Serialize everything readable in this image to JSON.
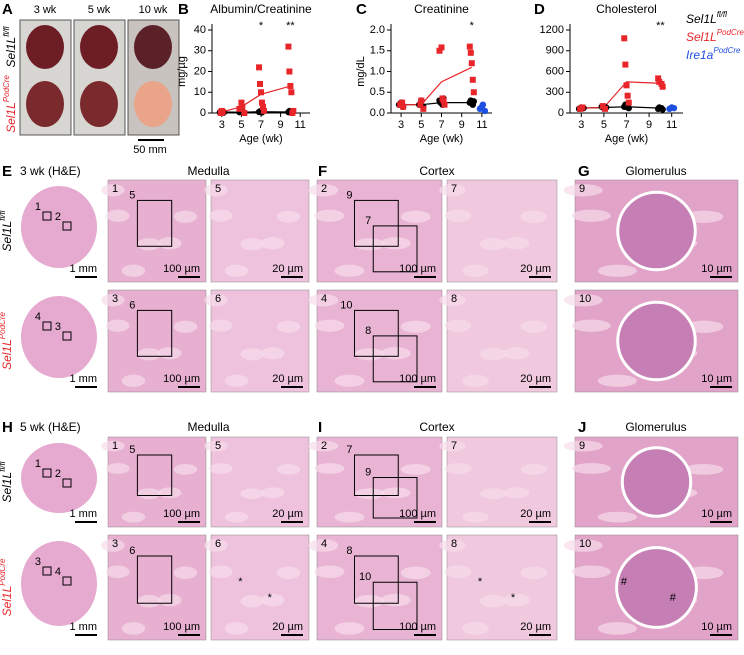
{
  "panel_letters": [
    "A",
    "B",
    "C",
    "D",
    "E",
    "F",
    "G",
    "H",
    "I",
    "J"
  ],
  "genotypes": [
    {
      "base": "Sel1L",
      "sup": "fl/fl",
      "color": "#000000"
    },
    {
      "base": "Sel1L",
      "sup": "PodCre",
      "color": "#e8262a"
    },
    {
      "base": "Ire1a",
      "sup": "PodCre",
      "color": "#1f4fe0"
    }
  ],
  "photos": {
    "columns": [
      "3 wk",
      "5 wk",
      "10 wk"
    ],
    "scale": "50 mm"
  },
  "chart_data": [
    {
      "type": "scatter",
      "title": "Albumin/Creatinine",
      "y_label": "mg/µg",
      "x_label": "Age (wk)",
      "xlim": [
        2,
        12
      ],
      "xticks": [
        3,
        5,
        7,
        9,
        11
      ],
      "ylim": [
        0,
        40
      ],
      "yticks": [
        0,
        10,
        20,
        30,
        40
      ],
      "annotations": [
        "*",
        "**"
      ],
      "series": [
        {
          "name": "Sel1L fl/fl",
          "color": "#000000",
          "marker": "circle",
          "x": [
            2.8,
            3,
            3.2,
            4.8,
            5,
            5.2,
            6.8,
            6.9,
            7.1,
            7.2,
            9.8,
            9.9,
            10.1,
            10.2
          ],
          "values": [
            0.3,
            0.5,
            0.2,
            0.4,
            0.6,
            0.2,
            0.5,
            0.8,
            0.3,
            1,
            0.4,
            0.9,
            0.6,
            0.2
          ]
        },
        {
          "name": "Sel1L PodCre",
          "color": "#e8262a",
          "marker": "square",
          "x": [
            2.9,
            3,
            3.1,
            4.8,
            5,
            5.1,
            5.3,
            6.8,
            6.9,
            7,
            7.1,
            7.2,
            7.3,
            9.8,
            9.9,
            10,
            10.1,
            10.2,
            10.3
          ],
          "values": [
            0,
            1,
            0.5,
            2,
            5,
            3,
            0,
            22,
            14,
            10,
            5,
            3,
            1,
            32,
            20,
            13,
            10,
            0,
            1
          ]
        }
      ],
      "lines": [
        {
          "color": "#000000",
          "x": [
            3,
            5,
            7,
            10
          ],
          "values": [
            0.5,
            0.4,
            0.6,
            0.5
          ]
        },
        {
          "color": "#e8262a",
          "x": [
            3,
            5,
            7,
            10
          ],
          "values": [
            0.5,
            3,
            9,
            13
          ]
        }
      ]
    },
    {
      "type": "scatter",
      "title": "Creatinine",
      "y_label": "mg/dL",
      "x_label": "Age (wk)",
      "xlim": [
        2,
        12
      ],
      "xticks": [
        3,
        5,
        7,
        9,
        11
      ],
      "ylim": [
        0,
        2
      ],
      "yticks": [
        {
          "value": 0,
          "label": "0.0"
        },
        {
          "value": 0.5,
          "label": "0.5"
        },
        {
          "value": 1,
          "label": "1.0"
        },
        {
          "value": 1.5,
          "label": "1.5"
        },
        {
          "value": 2,
          "label": "2.0"
        }
      ],
      "annotations": [
        "*"
      ],
      "series": [
        {
          "name": "Sel1L fl/fl",
          "color": "#000000",
          "marker": "circle",
          "x": [
            2.8,
            3,
            3.2,
            4.8,
            5,
            5.2,
            6.8,
            6.9,
            7.1,
            7.2,
            9.8,
            9.9,
            10.1,
            10.2
          ],
          "values": [
            0.2,
            0.25,
            0.15,
            0.2,
            0.3,
            0.15,
            0.3,
            0.25,
            0.2,
            0.35,
            0.25,
            0.3,
            0.2,
            0.28
          ]
        },
        {
          "name": "Sel1L PodCre",
          "color": "#e8262a",
          "marker": "square",
          "x": [
            2.9,
            3.1,
            3.2,
            4.9,
            5,
            5.2,
            6.8,
            7,
            7.1,
            7.2,
            7.3,
            9.8,
            9.9,
            10,
            10.1,
            10.2
          ],
          "values": [
            0.2,
            0.25,
            0.15,
            0.2,
            0.3,
            0.1,
            1.5,
            1.58,
            0.35,
            0.3,
            0.2,
            1.6,
            1.45,
            1.2,
            0.8,
            0.5
          ]
        },
        {
          "name": "Ire1a PodCre",
          "color": "#1f4fe0",
          "marker": "circle",
          "x": [
            10.8,
            11,
            11.1,
            11.3
          ],
          "values": [
            0.1,
            0.15,
            0.2,
            0.05
          ]
        }
      ],
      "lines": [
        {
          "color": "#000000",
          "x": [
            3,
            5,
            7,
            10
          ],
          "values": [
            0.2,
            0.2,
            0.25,
            0.25
          ]
        },
        {
          "color": "#e8262a",
          "x": [
            3,
            5,
            7,
            10
          ],
          "values": [
            0.2,
            0.2,
            0.75,
            1.1
          ]
        }
      ]
    },
    {
      "type": "scatter",
      "title": "Cholesterol",
      "x_label": "Age (wk)",
      "xlim": [
        2,
        12
      ],
      "xticks": [
        3,
        5,
        7,
        9,
        11
      ],
      "ylim": [
        0,
        1200
      ],
      "yticks": [
        0,
        300,
        600,
        900,
        1200
      ],
      "annotations": [
        "**"
      ],
      "series": [
        {
          "name": "Sel1L fl/fl",
          "color": "#000000",
          "marker": "circle",
          "x": [
            2.8,
            3,
            3.2,
            4.8,
            5,
            5.2,
            6.8,
            6.9,
            7.1,
            7.2,
            9.8,
            9.9,
            10.1,
            10.2
          ],
          "values": [
            60,
            80,
            70,
            90,
            70,
            80,
            90,
            120,
            80,
            70,
            60,
            80,
            70,
            50
          ]
        },
        {
          "name": "Sel1L PodCre",
          "color": "#e8262a",
          "marker": "square",
          "x": [
            2.9,
            3.1,
            4.9,
            5.1,
            6.8,
            6.9,
            7,
            7.1,
            7.2,
            9.8,
            9.9,
            10.1,
            10.2
          ],
          "values": [
            60,
            80,
            100,
            60,
            1080,
            700,
            400,
            250,
            150,
            500,
            450,
            420,
            380
          ]
        },
        {
          "name": "Ire1a PodCre",
          "color": "#1f4fe0",
          "marker": "circle",
          "x": [
            10.8,
            11,
            11.2
          ],
          "values": [
            60,
            80,
            70
          ]
        }
      ],
      "lines": [
        {
          "color": "#000000",
          "x": [
            3,
            5,
            7,
            10
          ],
          "values": [
            70,
            80,
            90,
            70
          ]
        },
        {
          "color": "#e8262a",
          "x": [
            3,
            5,
            7,
            10
          ],
          "values": [
            70,
            80,
            450,
            430
          ]
        }
      ]
    }
  ],
  "sections": [
    {
      "title": "3 wk (H&E)",
      "headers": [
        "Medulla",
        "Cortex",
        "Glomerulus"
      ],
      "tiles": [
        {
          "boxes": [
            "1",
            "2"
          ],
          "scale": "1 mm"
        },
        {
          "boxes": [
            "4",
            "3"
          ],
          "scale": "1 mm"
        },
        {
          "label": "1",
          "boxes": [
            "5"
          ],
          "scale": "100 µm"
        },
        {
          "label": "5",
          "scale": "20 µm"
        },
        {
          "label": "2",
          "boxes": [
            "9",
            "7"
          ],
          "scale": "100 µm"
        },
        {
          "label": "7",
          "scale": "20 µm"
        },
        {
          "label": "9",
          "scale": "10 µm"
        },
        {
          "label": "3",
          "boxes": [
            "6"
          ],
          "scale": "100 µm"
        },
        {
          "label": "6",
          "scale": "20 µm"
        },
        {
          "label": "4",
          "boxes": [
            "10",
            "8"
          ],
          "scale": "100 µm"
        },
        {
          "label": "8",
          "scale": "20 µm"
        },
        {
          "label": "10",
          "scale": "10 µm"
        }
      ]
    },
    {
      "title": "5 wk (H&E)",
      "headers": [
        "Medulla",
        "Cortex",
        "Glomerulus"
      ],
      "tiles": [
        {
          "boxes": [
            "1",
            "2"
          ],
          "scale": "1 mm"
        },
        {
          "boxes": [
            "3",
            "4"
          ],
          "scale": "1 mm"
        },
        {
          "label": "1",
          "boxes": [
            "5"
          ],
          "scale": "100 µm"
        },
        {
          "label": "5",
          "scale": "20 µm"
        },
        {
          "label": "2",
          "boxes": [
            "7",
            "9"
          ],
          "scale": "100 µm"
        },
        {
          "label": "7",
          "scale": "20 µm"
        },
        {
          "label": "9",
          "scale": "10 µm"
        },
        {
          "label": "3",
          "boxes": [
            "6"
          ],
          "scale": "100 µm"
        },
        {
          "label": "6",
          "marks": [
            "*",
            "*"
          ],
          "scale": "20 µm"
        },
        {
          "label": "4",
          "boxes": [
            "8",
            "10"
          ],
          "scale": "100 µm"
        },
        {
          "label": "8",
          "marks": [
            "*",
            "*"
          ],
          "scale": "20 µm"
        },
        {
          "label": "10",
          "marks": [
            "#",
            "#"
          ],
          "scale": "10 µm"
        }
      ]
    }
  ]
}
